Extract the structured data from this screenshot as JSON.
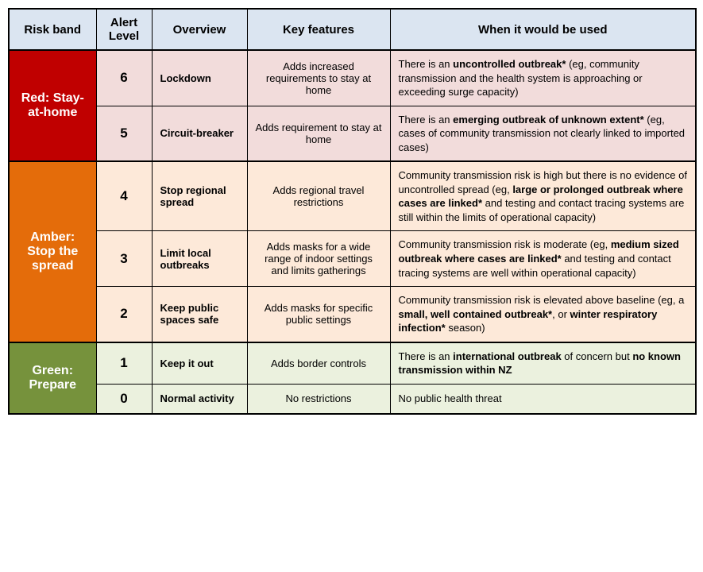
{
  "colors": {
    "header_bg": "#dbe5f1",
    "red_band": "#c00000",
    "red_tint": "#f2dcdb",
    "amber_band": "#e46c0a",
    "amber_tint": "#fde9d9",
    "green_band": "#76923c",
    "green_tint": "#ebf1de",
    "border": "#000000",
    "text": "#000000",
    "band_text": "#ffffff"
  },
  "columns": {
    "risk": "Risk band",
    "level": "Alert Level",
    "overview": "Overview",
    "features": "Key features",
    "when": "When it would be used"
  },
  "bands": [
    {
      "id": "red",
      "label": "Red: Stay-at-home",
      "rows": [
        {
          "level": "6",
          "overview": "Lockdown",
          "features": "Adds increased requirements to stay at home",
          "when_parts": [
            {
              "t": "There is an ",
              "b": false
            },
            {
              "t": "uncontrolled outbreak*",
              "b": true
            },
            {
              "t": " (eg, community transmission and the health system is approaching or exceeding surge capacity)",
              "b": false
            }
          ]
        },
        {
          "level": "5",
          "overview": "Circuit-breaker",
          "features": "Adds requirement to stay at home",
          "when_parts": [
            {
              "t": "There is an ",
              "b": false
            },
            {
              "t": "emerging outbreak of unknown extent*",
              "b": true
            },
            {
              "t": " (eg, cases of community transmission not clearly linked to imported cases)",
              "b": false
            }
          ]
        }
      ]
    },
    {
      "id": "amber",
      "label": "Amber: Stop the spread",
      "rows": [
        {
          "level": "4",
          "overview": "Stop regional spread",
          "features": "Adds regional travel restrictions",
          "when_parts": [
            {
              "t": "Community transmission risk is high but there is no evidence of uncontrolled spread (eg, ",
              "b": false
            },
            {
              "t": "large or prolonged outbreak where cases are linked*",
              "b": true
            },
            {
              "t": " and testing and contact tracing systems are still within the limits of operational capacity)",
              "b": false
            }
          ]
        },
        {
          "level": "3",
          "overview": "Limit local outbreaks",
          "features": "Adds masks for a wide range of indoor settings and limits gatherings",
          "when_parts": [
            {
              "t": "Community transmission risk is moderate (eg, ",
              "b": false
            },
            {
              "t": "medium sized outbreak where cases are linked*",
              "b": true
            },
            {
              "t": " and testing and contact tracing systems are well within operational capacity)",
              "b": false
            }
          ]
        },
        {
          "level": "2",
          "overview": "Keep public spaces safe",
          "features": "Adds masks for specific public settings",
          "when_parts": [
            {
              "t": "Community transmission risk is elevated above baseline (eg, a ",
              "b": false
            },
            {
              "t": "small, well contained outbreak*",
              "b": true
            },
            {
              "t": ", or ",
              "b": false
            },
            {
              "t": "winter respiratory infection*",
              "b": true
            },
            {
              "t": " season)",
              "b": false
            }
          ]
        }
      ]
    },
    {
      "id": "green",
      "label": "Green: Prepare",
      "rows": [
        {
          "level": "1",
          "overview": "Keep it out",
          "features": "Adds border controls",
          "when_parts": [
            {
              "t": "There is an ",
              "b": false
            },
            {
              "t": "international outbreak",
              "b": true
            },
            {
              "t": " of concern but ",
              "b": false
            },
            {
              "t": "no known transmission within NZ",
              "b": true
            }
          ]
        },
        {
          "level": "0",
          "overview": "Normal activity",
          "features": "No restrictions",
          "when_parts": [
            {
              "t": "No public health threat",
              "b": false
            }
          ]
        }
      ]
    }
  ]
}
